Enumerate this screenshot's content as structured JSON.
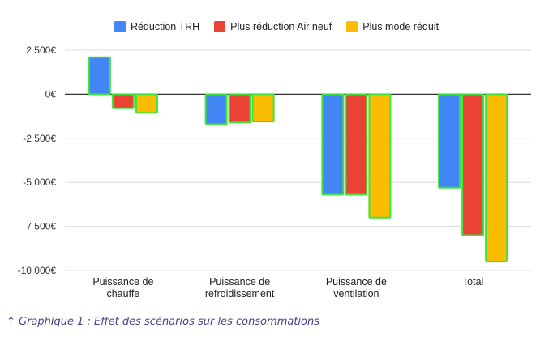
{
  "chart_data": {
    "type": "bar",
    "categories": [
      [
        "Puissance de",
        "chauffe"
      ],
      [
        "Puissance de",
        "refroidissement"
      ],
      [
        "Puissance de",
        "ventilation"
      ],
      [
        "Total"
      ]
    ],
    "series": [
      {
        "name": "Réduction TRH",
        "color": "#4285f4",
        "values": [
          2100,
          -1700,
          -5700,
          -5300
        ]
      },
      {
        "name": "Plus réduction Air neuf",
        "color": "#ea4335",
        "values": [
          -800,
          -1600,
          -5700,
          -8000
        ]
      },
      {
        "name": "Plus mode réduit",
        "color": "#fbbc04",
        "values": [
          -1050,
          -1550,
          -7000,
          -9500
        ]
      }
    ],
    "ylim": [
      -10000,
      2500
    ],
    "yticks": [
      2500,
      0,
      -2500,
      -5000,
      -7500,
      -10000
    ],
    "ytick_labels": [
      "2 500€",
      "0€",
      "-2 500€",
      "-5 000€",
      "-7 500€",
      "-10 000€"
    ],
    "grid": true,
    "legend": "top-center",
    "bar_outline_color": "#39e639"
  },
  "caption": "↑ Graphique 1 : Effet des scénarios sur les consommations"
}
